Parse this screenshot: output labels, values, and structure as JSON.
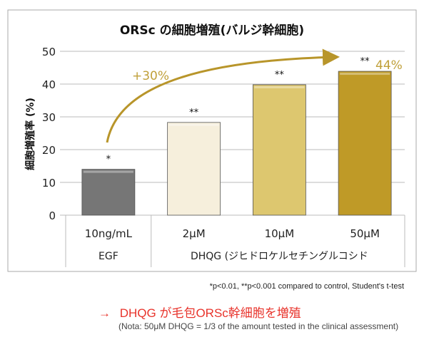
{
  "chart_data": {
    "type": "bar",
    "title": "ORSc の細胞増殖(バルジ幹細胞)",
    "ylabel": "細胞増殖率 (%)",
    "xlabel": "",
    "ylim": [
      0,
      50
    ],
    "yticks": [
      0,
      10,
      20,
      30,
      40,
      50
    ],
    "grid": true,
    "categories": [
      "10ng/mL",
      "2μM",
      "10μM",
      "50μM"
    ],
    "groups": [
      {
        "label": "EGF",
        "span": 1
      },
      {
        "label": "DHQG (ジヒドロケルセチングルコシド",
        "span": 3
      }
    ],
    "values": [
      14,
      28.3,
      39.8,
      43.9
    ],
    "significance": [
      "*",
      "**",
      "**",
      "**"
    ],
    "bar_colors": [
      "#767676",
      "#f6efdc",
      "#ddc76f",
      "#bf9a27"
    ],
    "annotations": {
      "increase": "+30%",
      "max": "44%"
    },
    "accent_color": "#b8952a"
  },
  "footnote": "*p<0.01, **p<0.001 compared to control, Student's t-test",
  "conclusion": {
    "arrow": "→",
    "text": "DHQG が毛包ORSc幹細胞を増殖"
  },
  "note": "(Nota: 50μM DHQG = 1/3 of the amount tested in the clinical assessment)"
}
